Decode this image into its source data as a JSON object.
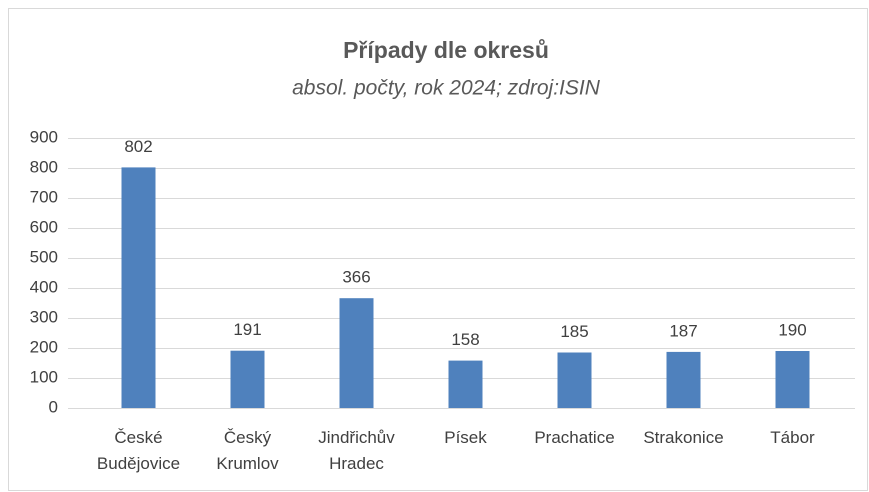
{
  "chart_data": {
    "type": "bar",
    "title": "Případy dle okresů",
    "subtitle": "absol. počty, rok 2024; zdroj:ISIN",
    "categories": [
      "České Budějovice",
      "Český Krumlov",
      "Jindřichův Hradec",
      "Písek",
      "Prachatice",
      "Strakonice",
      "Tábor"
    ],
    "values": [
      802,
      191,
      366,
      158,
      185,
      187,
      190
    ],
    "color": "#4f81bd",
    "ylim": [
      0,
      900
    ],
    "yticks": [
      0,
      100,
      200,
      300,
      400,
      500,
      600,
      700,
      800,
      900
    ],
    "grid": true
  }
}
